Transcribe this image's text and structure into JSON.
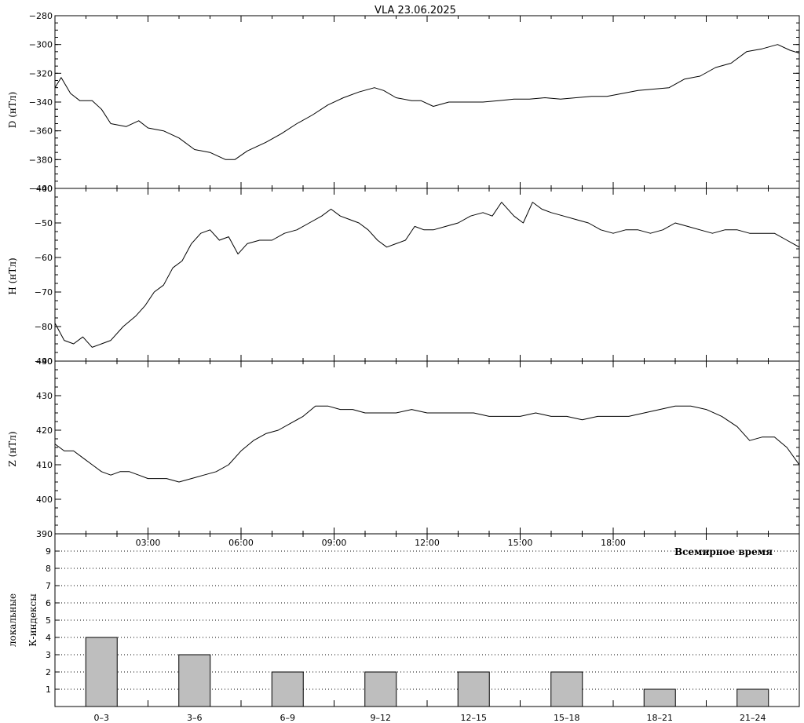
{
  "title": "VLA   23.06.2025",
  "chart_data": [
    {
      "type": "line",
      "name": "D",
      "ylabel": "D (нТл)",
      "ylabel_outer": "",
      "ylim": [
        -400,
        -280
      ],
      "yticks": [
        -400,
        -380,
        -360,
        -340,
        -320,
        -300,
        -280
      ],
      "xlim": [
        0,
        24
      ],
      "x": [
        0,
        0.2,
        0.5,
        0.8,
        1.2,
        1.5,
        1.8,
        2.3,
        2.7,
        3.0,
        3.5,
        4.0,
        4.5,
        5.0,
        5.5,
        5.8,
        6.2,
        6.8,
        7.3,
        7.8,
        8.3,
        8.8,
        9.3,
        9.8,
        10.3,
        10.6,
        11.0,
        11.5,
        11.8,
        12.2,
        12.7,
        13.3,
        13.8,
        14.3,
        14.8,
        15.3,
        15.8,
        16.3,
        16.8,
        17.3,
        17.8,
        18.3,
        18.8,
        19.3,
        19.8,
        20.3,
        20.8,
        21.3,
        21.8,
        22.3,
        22.8,
        23.3,
        23.7,
        24.0
      ],
      "y": [
        -330,
        -323,
        -334,
        -339,
        -339,
        -345,
        -355,
        -357,
        -353,
        -358,
        -360,
        -365,
        -373,
        -375,
        -380,
        -380,
        -374,
        -368,
        -362,
        -355,
        -349,
        -342,
        -337,
        -333,
        -330,
        -332,
        -337,
        -339,
        -339,
        -343,
        -340,
        -340,
        -340,
        -339,
        -338,
        -338,
        -337,
        -338,
        -337,
        -336,
        -336,
        -334,
        -332,
        -331,
        -330,
        -324,
        -322,
        -316,
        -313,
        -305,
        -303,
        -300,
        -304,
        -306
      ]
    },
    {
      "type": "line",
      "name": "H",
      "ylabel": "H (нТл)",
      "ylim": [
        -90,
        -40
      ],
      "yticks": [
        -90,
        -80,
        -70,
        -60,
        -50,
        -40
      ],
      "xlim": [
        0,
        24
      ],
      "x": [
        0,
        0.3,
        0.6,
        0.9,
        1.2,
        1.5,
        1.8,
        2.2,
        2.6,
        2.9,
        3.2,
        3.5,
        3.8,
        4.1,
        4.4,
        4.7,
        5.0,
        5.3,
        5.6,
        5.9,
        6.2,
        6.6,
        7.0,
        7.4,
        7.8,
        8.2,
        8.6,
        8.9,
        9.2,
        9.5,
        9.8,
        10.1,
        10.4,
        10.7,
        11.0,
        11.3,
        11.6,
        11.9,
        12.2,
        12.6,
        13.0,
        13.4,
        13.8,
        14.1,
        14.4,
        14.8,
        15.1,
        15.4,
        15.7,
        16.0,
        16.4,
        16.8,
        17.2,
        17.6,
        18.0,
        18.4,
        18.8,
        19.2,
        19.6,
        20.0,
        20.4,
        20.8,
        21.2,
        21.6,
        22.0,
        22.4,
        22.8,
        23.2,
        23.6,
        24.0
      ],
      "y": [
        -79,
        -84,
        -85,
        -83,
        -86,
        -85,
        -84,
        -80,
        -77,
        -74,
        -70,
        -68,
        -63,
        -61,
        -56,
        -53,
        -52,
        -55,
        -54,
        -59,
        -56,
        -55,
        -55,
        -53,
        -52,
        -50,
        -48,
        -46,
        -48,
        -49,
        -50,
        -52,
        -55,
        -57,
        -56,
        -55,
        -51,
        -52,
        -52,
        -51,
        -50,
        -48,
        -47,
        -48,
        -44,
        -48,
        -50,
        -44,
        -46,
        -47,
        -48,
        -49,
        -50,
        -52,
        -53,
        -52,
        -52,
        -53,
        -52,
        -50,
        -51,
        -52,
        -53,
        -52,
        -52,
        -53,
        -53,
        -53,
        -55,
        -57
      ]
    },
    {
      "type": "line",
      "name": "Z",
      "ylabel": "Z (нТл)",
      "ylim": [
        390,
        440
      ],
      "yticks": [
        390,
        400,
        410,
        420,
        430,
        440
      ],
      "xlim": [
        0,
        24
      ],
      "x": [
        0,
        0.3,
        0.6,
        0.9,
        1.2,
        1.5,
        1.8,
        2.1,
        2.4,
        2.7,
        3.0,
        3.3,
        3.6,
        4.0,
        4.4,
        4.8,
        5.2,
        5.6,
        6.0,
        6.4,
        6.8,
        7.2,
        7.6,
        8.0,
        8.4,
        8.8,
        9.2,
        9.6,
        10.0,
        10.5,
        11.0,
        11.5,
        12.0,
        12.5,
        13.0,
        13.5,
        14.0,
        14.5,
        15.0,
        15.5,
        16.0,
        16.5,
        17.0,
        17.5,
        18.0,
        18.5,
        19.0,
        19.5,
        20.0,
        20.5,
        21.0,
        21.5,
        22.0,
        22.4,
        22.8,
        23.2,
        23.6,
        24.0
      ],
      "y": [
        416,
        414,
        414,
        412,
        410,
        408,
        407,
        408,
        408,
        407,
        406,
        406,
        406,
        405,
        406,
        407,
        408,
        410,
        414,
        417,
        419,
        420,
        422,
        424,
        427,
        427,
        426,
        426,
        425,
        425,
        425,
        426,
        425,
        425,
        425,
        425,
        424,
        424,
        424,
        425,
        424,
        424,
        423,
        424,
        424,
        424,
        425,
        426,
        427,
        427,
        426,
        424,
        421,
        417,
        418,
        418,
        415,
        410
      ]
    },
    {
      "type": "bar",
      "ylabel_outer": "локальные",
      "ylabel": "К-индексы",
      "xlabel": "Всемирное время",
      "xtick_labels": [
        "03:00",
        "06:00",
        "09:00",
        "12:00",
        "15:00",
        "18:00"
      ],
      "xtick_values": [
        3,
        6,
        9,
        12,
        15,
        18
      ],
      "categories": [
        "0–3",
        "3–6",
        "6–9",
        "9–12",
        "12–15",
        "15–18",
        "18–21",
        "21–24"
      ],
      "values": [
        4,
        3,
        2,
        2,
        2,
        2,
        1,
        1
      ],
      "ylim": [
        0,
        10
      ],
      "yticks": [
        1,
        2,
        3,
        4,
        5,
        6,
        7,
        8,
        9
      ],
      "grid": true,
      "bar_color": "#bebebe"
    }
  ]
}
